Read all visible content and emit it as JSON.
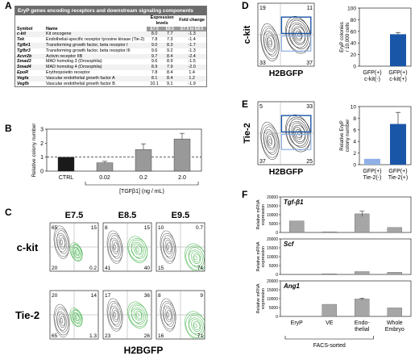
{
  "panel_letters": {
    "a": "A",
    "b": "B",
    "c": "C",
    "d": "D",
    "e": "E",
    "f": "F"
  },
  "table": {
    "title": "EryP genes encoding receptors and downstream signaling components",
    "headers": {
      "symbol": "Symbol",
      "name": "Name",
      "expression": "Expression levels",
      "fold": "Fold change",
      "e75": "E7.5",
      "e85": "E8.5",
      "fold_sub": "E7.5 to E8.5"
    },
    "rows": [
      {
        "symbol": "c-kit",
        "name": "Kit oncogene",
        "e75": "8.0",
        "e85": "7.7",
        "fold": "-1.3"
      },
      {
        "symbol": "Tek",
        "name": "Endothelial-specific receptor tyrosine kinase (Tie-2)",
        "e75": "7.8",
        "e85": "7.3",
        "fold": "-1.4"
      },
      {
        "symbol": "Tgfbr1",
        "name": "Transforming growth factor, beta receptor I",
        "e75": "9.0",
        "e85": "8.3",
        "fold": "-1.7"
      },
      {
        "symbol": "Tgfbr3",
        "name": "Transforming growth factor, beta receptor III",
        "e75": "9.6",
        "e85": "9.2",
        "fold": "-1.3"
      },
      {
        "symbol": "Acvr2b",
        "name": "Activin receptor IIB",
        "e75": "9.7",
        "e85": "8.4",
        "fold": "-2.4"
      },
      {
        "symbol": "Smad3",
        "name": "MAD homolog 3 (Drosophila)",
        "e75": "9.6",
        "e85": "8.9",
        "fold": "-1.5"
      },
      {
        "symbol": "Smad4",
        "name": "MAD homolog 4 (Drosophila)",
        "e75": "8.9",
        "e85": "7.9",
        "fold": "-2.0"
      },
      {
        "symbol": "EpoR",
        "name": "Erythropoietin receptor",
        "e75": "7.8",
        "e85": "8.4",
        "fold": "1.4"
      },
      {
        "symbol": "Vegfa",
        "name": "Vascular endothelial growth factor A",
        "e75": "8.1",
        "e85": "8.4",
        "fold": "1.2"
      },
      {
        "symbol": "Vegfb",
        "name": "Vascular endothelial growth factor B",
        "e75": "10.1",
        "e85": "9.1",
        "fold": "-1.9"
      }
    ]
  },
  "panel_c": {
    "col_titles": [
      "E7.5",
      "E8.5",
      "E9.5"
    ],
    "row_titles": [
      "c-kit",
      "Tie-2"
    ],
    "xlabel": "H2BGFP",
    "quadrants": [
      [
        [
          "65",
          "15",
          "20",
          "0.2"
        ],
        [
          "8",
          "15",
          "41",
          "40"
        ],
        [
          "10",
          "0.7",
          "15",
          "74"
        ]
      ],
      [
        [
          "20",
          "14",
          "65",
          "1.3"
        ],
        [
          "17",
          "36",
          "23",
          "26"
        ],
        [
          "8",
          "9",
          "16",
          "71"
        ]
      ]
    ]
  },
  "panel_d": {
    "flow": {
      "ylabel": "c-kit",
      "xlabel": "H2BGFP",
      "q_tl": "19",
      "q_tr": "11",
      "q_bl": "33",
      "q_br": "37"
    },
    "chart_data": {
      "type": "bar",
      "categories": [
        "GFP(+) c-kit(-)",
        "GFP(+) c-kit(+)"
      ],
      "values": [
        0,
        55
      ],
      "errors": [
        0,
        3
      ],
      "ylabel": "EryP colonies / 10,000 cells",
      "ylim": [
        0,
        100
      ],
      "yticks": [
        0,
        20,
        40,
        60,
        80,
        100
      ],
      "cat_lines": [
        [
          "GFP(+)",
          "c-kit(-)"
        ],
        [
          "GFP(+)",
          "c-kit(+)"
        ]
      ],
      "colors": [
        "#8fb0e6",
        "#1a56a8"
      ]
    }
  },
  "panel_e": {
    "flow": {
      "ylabel": "Tie-2",
      "xlabel": "H2BGFP",
      "q_tl": "5",
      "q_tr": "33",
      "q_bl": "37",
      "q_br": "25"
    },
    "chart_data": {
      "type": "bar",
      "categories": [
        "GFP(+) Tie-2(-)",
        "GFP(+) Tie-2(+)"
      ],
      "values": [
        1,
        7
      ],
      "errors": [
        0,
        2
      ],
      "ylabel": "Relative EryP colony number",
      "ylim": [
        0,
        10
      ],
      "yticks": [
        0,
        2,
        4,
        6,
        8,
        10
      ],
      "cat_lines": [
        [
          "GFP(+)",
          "Tie-2(-)"
        ],
        [
          "GFP(+)",
          "Tie-2(+)"
        ]
      ],
      "colors": [
        "#8fb0e6",
        "#1a56a8"
      ]
    }
  },
  "panel_b": {
    "chart_data": {
      "type": "bar",
      "categories": [
        "CTRL",
        "0.02",
        "0.2",
        "2.0"
      ],
      "values": [
        1,
        0.6,
        1.55,
        2.3
      ],
      "errors": [
        0,
        0.1,
        0.4,
        0.4
      ],
      "ylabel": "Relative colony number",
      "xlabel": "[TGFβ1] (ng / mL)",
      "ylim": [
        0,
        3
      ],
      "yticks": [
        0,
        1,
        2,
        3
      ],
      "reference_line": 1,
      "colors": [
        "#1a1a1a",
        "#999999",
        "#999999",
        "#999999"
      ]
    }
  },
  "panel_f": {
    "chart_data": [
      {
        "type": "bar",
        "title": "Tgf-β1",
        "categories": [
          "EryP",
          "VE",
          "Endothelial",
          "Whole Embryo"
        ],
        "values": [
          6500,
          400,
          10500,
          2800
        ],
        "errors": [
          0,
          0,
          1500,
          0
        ],
        "ylim": [
          0,
          20000
        ],
        "yticks": [
          0,
          5000,
          10000,
          15000,
          20000
        ],
        "ylabel": "Relative mRNA expression"
      },
      {
        "type": "bar",
        "title": "Scf",
        "categories": [
          "EryP",
          "VE",
          "Endothelial",
          "Whole Embryo"
        ],
        "values": [
          0,
          400,
          1600,
          1200
        ],
        "errors": [
          0,
          0,
          0,
          0
        ],
        "ylim": [
          0,
          20000
        ],
        "yticks": [
          0,
          5000,
          10000,
          15000,
          20000
        ],
        "ylabel": "Relative mRNA expression"
      },
      {
        "type": "bar",
        "title": "Ang1",
        "categories": [
          "EryP",
          "VE",
          "Endothelial",
          "Whole Embryo"
        ],
        "values": [
          0,
          6800,
          9800,
          4800
        ],
        "errors": [
          0,
          0,
          500,
          0
        ],
        "ylim": [
          0,
          20000
        ],
        "yticks": [
          0,
          5000,
          10000,
          15000,
          20000
        ],
        "ylabel": "Relative mRNA expression"
      }
    ],
    "cat_labels": [
      [
        "EryP"
      ],
      [
        "VE"
      ],
      [
        "Endo-",
        "thelial"
      ],
      [
        "Whole",
        "Embryo"
      ]
    ],
    "footer": "FACS-sorted"
  }
}
